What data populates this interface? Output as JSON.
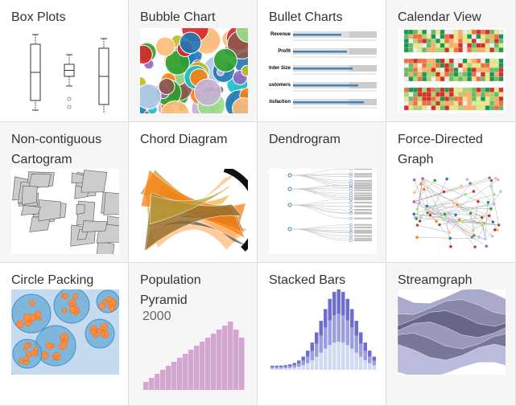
{
  "tiles": [
    {
      "title": "Box Plots"
    },
    {
      "title": "Bubble Chart"
    },
    {
      "title": "Bullet Charts"
    },
    {
      "title": "Calendar View"
    },
    {
      "title": "Non-contiguous Cartogram"
    },
    {
      "title": "Chord Diagram"
    },
    {
      "title": "Dendrogram"
    },
    {
      "title": "Force-Directed Graph"
    },
    {
      "title": "Circle Packing"
    },
    {
      "title": "Population Pyramid"
    },
    {
      "title": "Stacked Bars"
    },
    {
      "title": "Streamgraph"
    }
  ],
  "bullet_labels": [
    "Revenue",
    "Profit",
    "Order Size",
    "Customers",
    "Satisfaction"
  ],
  "pyramid_year": "2000"
}
